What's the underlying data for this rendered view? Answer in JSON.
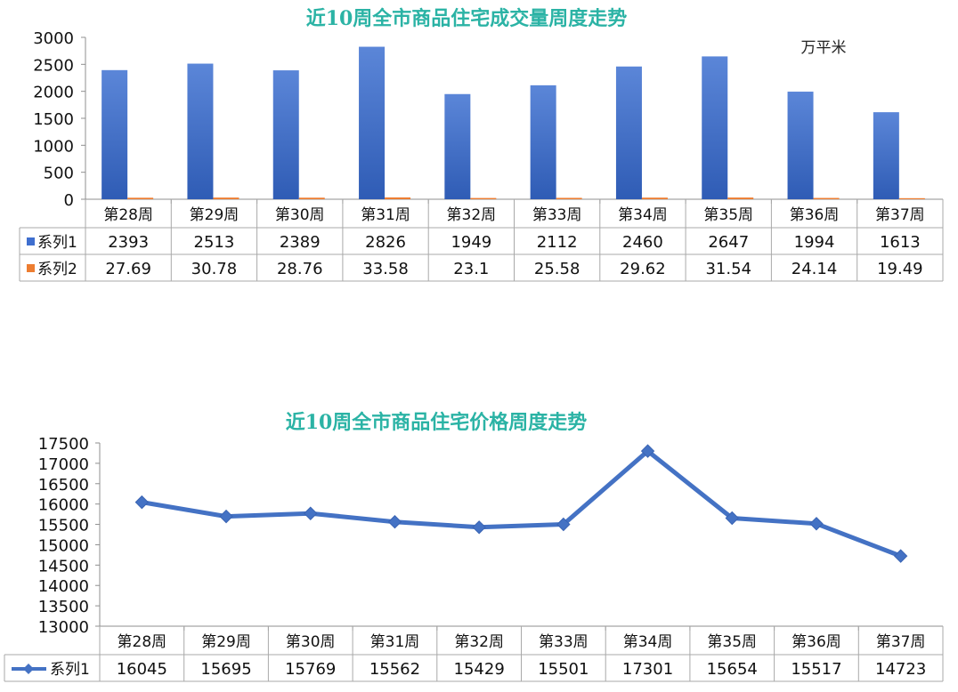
{
  "chart_data": [
    {
      "type": "bar",
      "title": "近10周全市商品住宅成交量周度走势",
      "unit_label": "万平米",
      "categories": [
        "第28周",
        "第29周",
        "第30周",
        "第31周",
        "第32周",
        "第33周",
        "第34周",
        "第35周",
        "第36周",
        "第37周"
      ],
      "series": [
        {
          "name": "系列1",
          "values": [
            "2393",
            "2513",
            "2389",
            "2826",
            "1949",
            "2112",
            "2460",
            "2647",
            "1994",
            "1613"
          ],
          "color": "#3f6fcf"
        },
        {
          "name": "系列2",
          "values": [
            "27.69",
            "30.78",
            "28.76",
            "33.58",
            "23.1",
            "25.58",
            "29.62",
            "31.54",
            "24.14",
            "19.49"
          ],
          "color": "#ed7d31"
        }
      ],
      "yticks": [
        "0",
        "500",
        "1000",
        "1500",
        "2000",
        "2500",
        "3000"
      ],
      "ylim": [
        0,
        3000
      ],
      "grid": false,
      "legend": "data-table"
    },
    {
      "type": "line",
      "title": "近10周全市商品住宅价格周度走势",
      "categories": [
        "第28周",
        "第29周",
        "第30周",
        "第31周",
        "第32周",
        "第33周",
        "第34周",
        "第35周",
        "第36周",
        "第37周"
      ],
      "series": [
        {
          "name": "系列1",
          "values": [
            "16045",
            "15695",
            "15769",
            "15562",
            "15429",
            "15501",
            "17301",
            "15654",
            "15517",
            "14723"
          ],
          "color": "#4472c4"
        }
      ],
      "yticks": [
        "13000",
        "13500",
        "14000",
        "14500",
        "15000",
        "15500",
        "16000",
        "16500",
        "17000",
        "17500"
      ],
      "ylim": [
        13000,
        17500
      ],
      "grid": false,
      "legend": "data-table"
    }
  ]
}
